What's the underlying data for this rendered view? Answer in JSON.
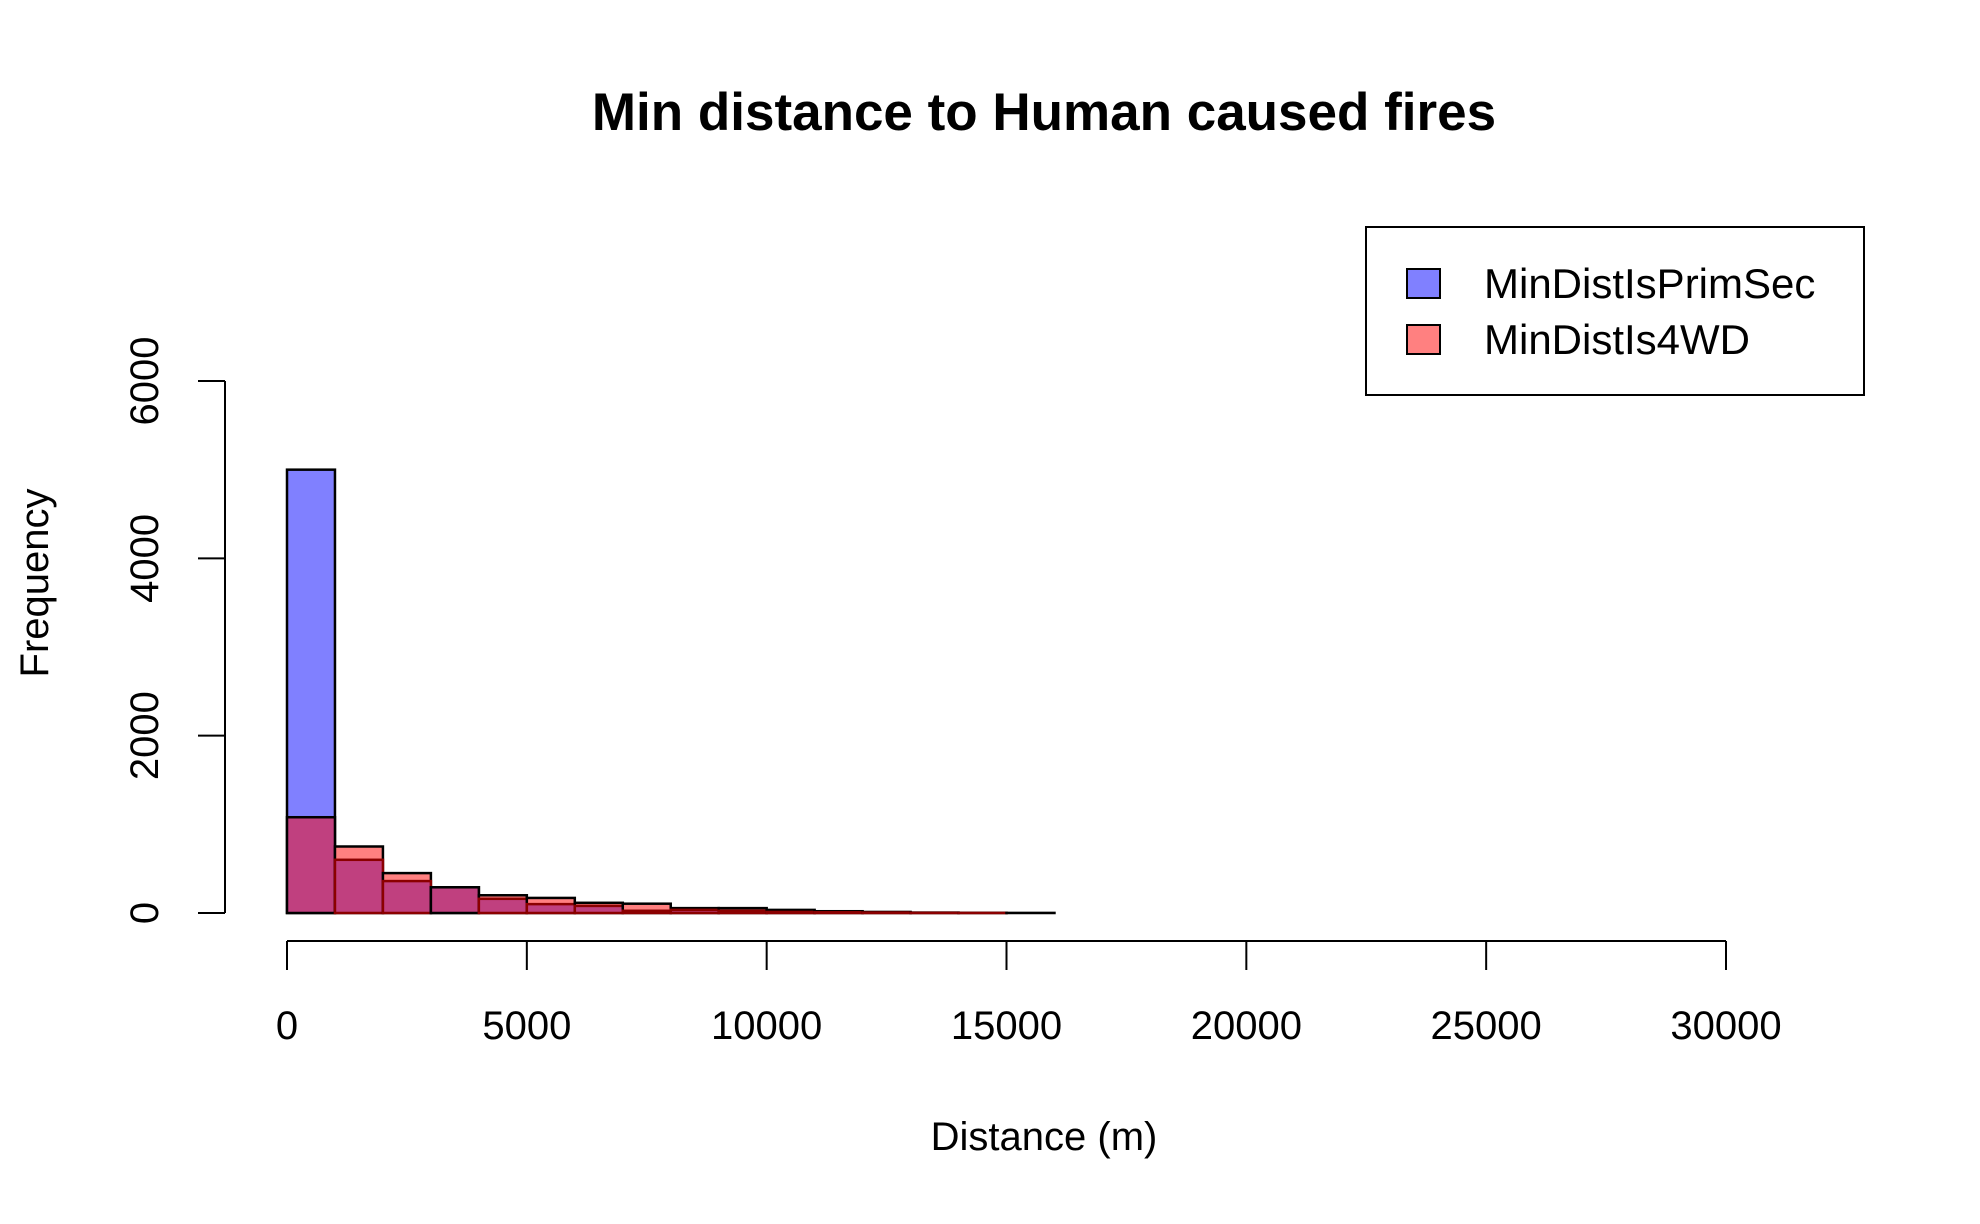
{
  "chart_data": {
    "type": "bar",
    "title": "Min distance to Human caused fires",
    "xlabel": "Distance (m)",
    "ylabel": "Frequency",
    "xlim": [
      0,
      30000
    ],
    "ylim": [
      0,
      6000
    ],
    "bin_width": 1000,
    "x_ticks": [
      0,
      5000,
      10000,
      15000,
      20000,
      25000,
      30000
    ],
    "x_tick_labels": [
      "0",
      "5000",
      "10000",
      "15000",
      "20000",
      "25000",
      "30000"
    ],
    "y_ticks": [
      0,
      2000,
      4000,
      6000
    ],
    "y_tick_labels": [
      "0",
      "2000",
      "4000",
      "6000"
    ],
    "grid": false,
    "legend_position": "top-right",
    "series": [
      {
        "name": "MinDistIsPrimSec",
        "color": "#8080ff",
        "values": [
          5000,
          600,
          360,
          290,
          160,
          100,
          80,
          25,
          35,
          25,
          12,
          8,
          5,
          2,
          1,
          0,
          0,
          0,
          0,
          0,
          0,
          0,
          0,
          0,
          0,
          0,
          0,
          0,
          0,
          0
        ]
      },
      {
        "name": "MinDistIs4WD",
        "color": "#ff8080",
        "values": [
          1080,
          750,
          450,
          290,
          200,
          170,
          115,
          105,
          55,
          55,
          35,
          20,
          12,
          5,
          2,
          1,
          0,
          0,
          0,
          0,
          0,
          0,
          0,
          0,
          0,
          0,
          0,
          0,
          0,
          0
        ]
      }
    ],
    "overlap_color": "#c0407f"
  }
}
